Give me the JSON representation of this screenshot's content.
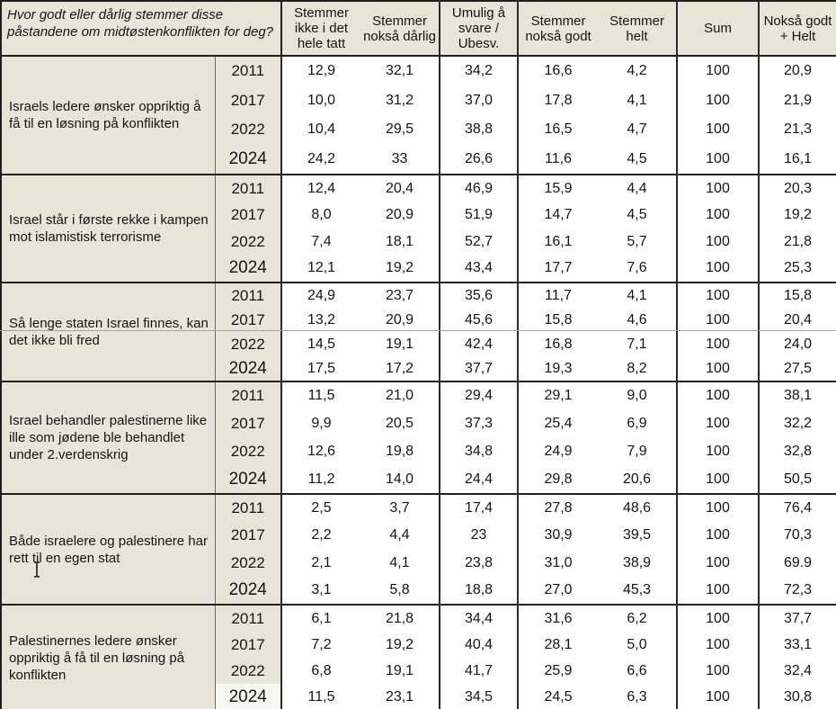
{
  "table": {
    "question": "Hvor godt eller dårlig stemmer disse påstandene om midtøstenkonflikten for deg?",
    "columns": [
      "Stemmer ikke i det hele tatt",
      "Stemmer nokså dårlig",
      "Umulig å svare / Ubesv.",
      "Stemmer nokså godt",
      "Stemmer helt",
      "Sum",
      "Nokså godt + Helt"
    ],
    "colors": {
      "cell_beige": "#e8e4d7",
      "cell_white": "#ffffff",
      "light_year_cell": "#f6f6f3",
      "border_dark": "#1f1f1f"
    },
    "icons": {
      "ibeam_cursor": "text-ibeam-pointer"
    },
    "groups": [
      {
        "statement": "Israels ledere ønsker oppriktig å få til en løsning på konflikten",
        "rows": [
          {
            "year": "2011",
            "values": [
              "12,9",
              "32,1",
              "34,2",
              "16,6",
              "4,2",
              "100",
              "20,9"
            ]
          },
          {
            "year": "2017",
            "values": [
              "10,0",
              "31,2",
              "37,0",
              "17,8",
              "4,1",
              "100",
              "21,9"
            ]
          },
          {
            "year": "2022",
            "values": [
              "10,4",
              "29,5",
              "38,8",
              "16,5",
              "4,7",
              "100",
              "21,3"
            ]
          },
          {
            "year": "2024",
            "values": [
              "24,2",
              "33",
              "26,6",
              "11,6",
              "4,5",
              "100",
              "16,1"
            ]
          }
        ]
      },
      {
        "statement": "Israel står i første rekke i kampen mot islamistisk terrorisme",
        "rows": [
          {
            "year": "2011",
            "values": [
              "12,4",
              "20,4",
              "46,9",
              "15,9",
              "4,4",
              "100",
              "20,3"
            ]
          },
          {
            "year": "2017",
            "values": [
              "8,0",
              "20,9",
              "51,9",
              "14,7",
              "4,5",
              "100",
              "19,2"
            ]
          },
          {
            "year": "2022",
            "values": [
              "7,4",
              "18,1",
              "52,7",
              "16,1",
              "5,7",
              "100",
              "21,8"
            ]
          },
          {
            "year": "2024",
            "values": [
              "12,1",
              "19,2",
              "43,4",
              "17,7",
              "7,6",
              "100",
              "25,3"
            ]
          }
        ]
      },
      {
        "statement": "Så lenge staten Israel finnes, kan det ikke bli fred",
        "rows": [
          {
            "year": "2011",
            "values": [
              "24,9",
              "23,7",
              "35,6",
              "11,7",
              "4,1",
              "100",
              "15,8"
            ]
          },
          {
            "year": "2017",
            "values": [
              "13,2",
              "20,9",
              "45,6",
              "15,8",
              "4,6",
              "100",
              "20,4"
            ]
          },
          {
            "year": "2022",
            "values": [
              "14,5",
              "19,1",
              "42,4",
              "16,8",
              "7,1",
              "100",
              "24,0"
            ]
          },
          {
            "year": "2024",
            "values": [
              "17,5",
              "17,2",
              "37,7",
              "19,3",
              "8,2",
              "100",
              "27,5"
            ]
          }
        ]
      },
      {
        "statement": "Israel behandler palestinerne like ille som jødene ble behandlet under 2.verdenskrig",
        "rows": [
          {
            "year": "2011",
            "values": [
              "11,5",
              "21,0",
              "29,4",
              "29,1",
              "9,0",
              "100",
              "38,1"
            ]
          },
          {
            "year": "2017",
            "values": [
              "9,9",
              "20,5",
              "37,3",
              "25,4",
              "6,9",
              "100",
              "32,2"
            ]
          },
          {
            "year": "2022",
            "values": [
              "12,6",
              "19,8",
              "34,8",
              "24,9",
              "7,9",
              "100",
              "32,8"
            ]
          },
          {
            "year": "2024",
            "values": [
              "11,2",
              "14,0",
              "24,4",
              "29,8",
              "20,6",
              "100",
              "50,5"
            ]
          }
        ]
      },
      {
        "statement": "Både israelere og palestinere har rett til en egen stat",
        "rows": [
          {
            "year": "2011",
            "values": [
              "2,5",
              "3,7",
              "17,4",
              "27,8",
              "48,6",
              "100",
              "76,4"
            ]
          },
          {
            "year": "2017",
            "values": [
              "2,2",
              "4,4",
              "23",
              "30,9",
              "39,5",
              "100",
              "70,3"
            ]
          },
          {
            "year": "2022",
            "values": [
              "2,1",
              "4,1",
              "23,8",
              "31,0",
              "38,9",
              "100",
              "69.9"
            ]
          },
          {
            "year": "2024",
            "values": [
              "3,1",
              "5,8",
              "18,8",
              "27,0",
              "45,3",
              "100",
              "72,3"
            ]
          }
        ]
      },
      {
        "statement": "Palestinernes ledere ønsker oppriktig å få til en løsning på konflikten",
        "rows": [
          {
            "year": "2011",
            "values": [
              "6,1",
              "21,8",
              "34,4",
              "31,6",
              "6,2",
              "100",
              "37,7"
            ]
          },
          {
            "year": "2017",
            "values": [
              "7,2",
              "19,2",
              "40,4",
              "28,1",
              "5,0",
              "100",
              "33,1"
            ]
          },
          {
            "year": "2022",
            "values": [
              "6,8",
              "19,1",
              "41,7",
              "25,9",
              "6,6",
              "100",
              "32,4"
            ]
          },
          {
            "year": "2024",
            "light": true,
            "values": [
              "11,5",
              "23,1",
              "34,5",
              "24,5",
              "6,3",
              "100",
              "30,8"
            ]
          }
        ]
      }
    ]
  }
}
